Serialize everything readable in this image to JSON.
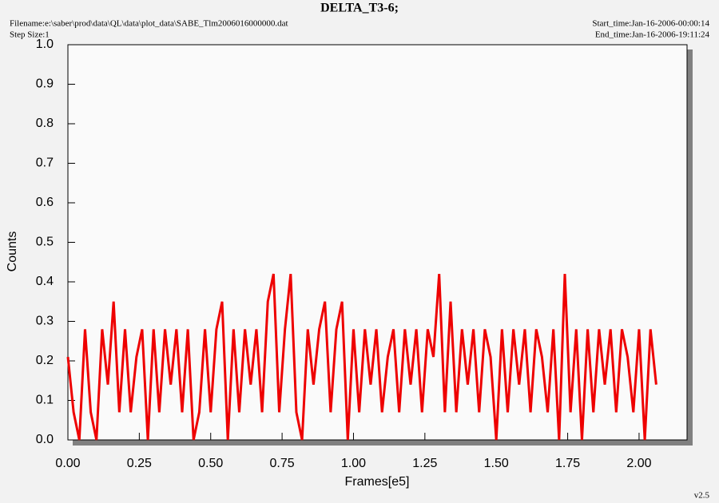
{
  "chart_data": {
    "type": "line",
    "title": "DELTA_T3-6;",
    "filename": "Filename:e:\\saber\\prod\\data\\QL\\data\\plot_data\\SABE_Tlm2006016000000.dat",
    "step_size": "Step Size:1",
    "start_time": "Start_time:Jan-16-2006-00:00:14",
    "end_time": "End_time:Jan-16-2006-19:11:24",
    "version": "v2.5",
    "xlabel": "Frames[e5]",
    "ylabel": "Counts",
    "xlim": [
      0,
      2.168
    ],
    "ylim": [
      0,
      1
    ],
    "xticks": [
      {
        "value": 0,
        "label": "0.00"
      },
      0.25,
      {
        "value": 0.5,
        "label": "0.50"
      },
      0.75,
      {
        "value": 1,
        "label": "1.00"
      },
      1.25,
      {
        "value": 1.5,
        "label": "1.50"
      },
      1.75,
      {
        "value": 2,
        "label": "2.00"
      }
    ],
    "yticks": [
      {
        "value": 0,
        "label": "0.0"
      },
      0.1,
      0.2,
      0.3,
      0.4,
      0.5,
      0.6,
      0.7,
      0.8,
      0.9,
      {
        "value": 1,
        "label": "1.0"
      }
    ],
    "x": [
      0,
      0.02,
      0.04,
      0.06,
      0.08,
      0.1,
      0.12,
      0.14,
      0.16,
      0.18,
      0.2,
      0.22,
      0.24,
      0.26,
      0.28,
      0.3,
      0.32,
      0.34,
      0.36,
      0.38,
      0.4,
      0.42,
      0.44,
      0.46,
      0.48,
      0.5,
      0.52,
      0.54,
      0.56,
      0.58,
      0.6,
      0.62,
      0.64,
      0.66,
      0.68,
      0.7,
      0.72,
      0.74,
      0.76,
      0.78,
      0.8,
      0.82,
      0.84,
      0.86,
      0.88,
      0.9,
      0.92,
      0.94,
      0.96,
      0.98,
      1,
      1.02,
      1.04,
      1.06,
      1.08,
      1.1,
      1.12,
      1.14,
      1.16,
      1.18,
      1.2,
      1.22,
      1.24,
      1.26,
      1.28,
      1.3,
      1.32,
      1.34,
      1.36,
      1.38,
      1.4,
      1.42,
      1.44,
      1.46,
      1.48,
      1.5,
      1.52,
      1.54,
      1.56,
      1.58,
      1.6,
      1.62,
      1.64,
      1.66,
      1.68,
      1.7,
      1.72,
      1.74,
      1.76,
      1.78,
      1.8,
      1.82,
      1.84,
      1.86,
      1.88,
      1.9,
      1.92,
      1.94,
      1.96,
      1.98,
      2,
      2.02,
      2.04,
      2.06
    ],
    "series": [
      {
        "color": "#ee0000",
        "values": [
          0.21,
          0.07,
          0,
          0.28,
          0.07,
          0,
          0.28,
          0.14,
          0.35,
          0.07,
          0.28,
          0.07,
          0.21,
          0.28,
          0,
          0.28,
          0.07,
          0.28,
          0.14,
          0.28,
          0.07,
          0.28,
          0,
          0.07,
          0.28,
          0.07,
          0.28,
          0.35,
          0,
          0.28,
          0.07,
          0.28,
          0.14,
          0.28,
          0.07,
          0.35,
          0.42,
          0.07,
          0.28,
          0.42,
          0.07,
          0,
          0.28,
          0.14,
          0.28,
          0.35,
          0.07,
          0.28,
          0.35,
          0,
          0.28,
          0.07,
          0.28,
          0.14,
          0.28,
          0.07,
          0.21,
          0.28,
          0.07,
          0.28,
          0.14,
          0.28,
          0.07,
          0.28,
          0.21,
          0.42,
          0.07,
          0.35,
          0.07,
          0.28,
          0.14,
          0.28,
          0.07,
          0.28,
          0.21,
          0,
          0.28,
          0.07,
          0.28,
          0.14,
          0.28,
          0.07,
          0.28,
          0.21,
          0.07,
          0.28,
          0,
          0.42,
          0.07,
          0.28,
          0,
          0.28,
          0.07,
          0.28,
          0.14,
          0.28,
          0.07,
          0.28,
          0.21,
          0.07,
          0.28,
          0,
          0.28,
          0.14
        ]
      }
    ]
  }
}
